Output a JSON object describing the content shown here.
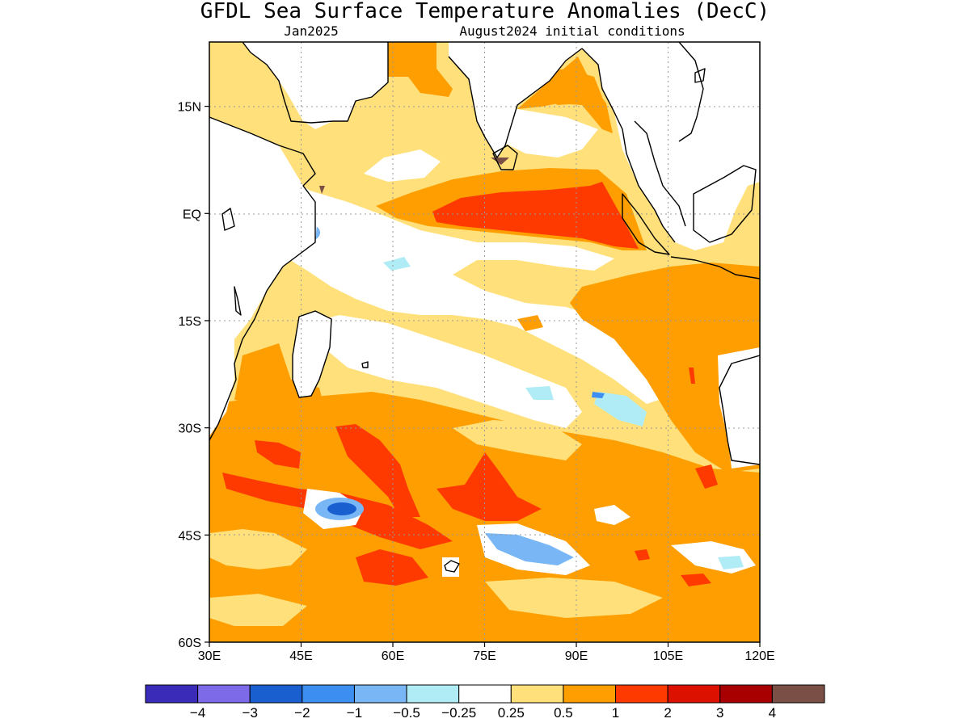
{
  "title": "GFDL Sea Surface Temperature Anomalies (DecC)",
  "subtitle_left": "Jan2025",
  "subtitle_right": "August2024 initial conditions",
  "axes": {
    "x_ticks": [
      "30E",
      "45E",
      "60E",
      "75E",
      "90E",
      "105E",
      "120E"
    ],
    "y_ticks": [
      "15N",
      "EQ",
      "15S",
      "30S",
      "45S",
      "60S"
    ]
  },
  "colorbar": {
    "colors": [
      "#3a2bb8",
      "#7c6ae8",
      "#1a5fd0",
      "#3c8ff0",
      "#78b6f5",
      "#b0ecf5",
      "#ffffff",
      "#ffe07a",
      "#ff9e00",
      "#ff3a00",
      "#dd1100",
      "#a80000",
      "#7a4f45"
    ],
    "labels": [
      "−4",
      "−3",
      "−2",
      "−1",
      "−0.5",
      "−0.25",
      "0.25",
      "0.5",
      "1",
      "2",
      "3",
      "4"
    ]
  },
  "chart_data": {
    "type": "heatmap",
    "title": "GFDL Sea Surface Temperature Anomalies (DecC)",
    "valid_month": "Jan2025",
    "initial_conditions": "August2024 initial conditions",
    "lon_range": [
      30,
      120
    ],
    "lat_range": [
      -60,
      24
    ],
    "x_ticks": [
      "30E",
      "45E",
      "60E",
      "75E",
      "90E",
      "105E",
      "120E"
    ],
    "y_ticks": [
      "15N",
      "EQ",
      "15S",
      "30S",
      "45S",
      "60S"
    ],
    "grid": true,
    "levels": [
      -4,
      -3,
      -2,
      -1,
      -0.5,
      -0.25,
      0.25,
      0.5,
      1,
      2,
      3,
      4
    ],
    "colors": [
      "#3a2bb8",
      "#7c6ae8",
      "#1a5fd0",
      "#3c8ff0",
      "#78b6f5",
      "#b0ecf5",
      "#ffffff",
      "#ffe07a",
      "#ff9e00",
      "#ff3a00",
      "#dd1100",
      "#a80000",
      "#7a4f45"
    ],
    "regions": [
      {
        "anomaly_range": [
          0.25,
          0.5
        ],
        "lon": [
          62,
          92
        ],
        "lat": [
          -18,
          -2
        ]
      },
      {
        "anomaly_range": [
          0.5,
          1
        ],
        "lon": [
          95,
          120
        ],
        "lat": [
          -28,
          -5
        ]
      },
      {
        "anomaly_range": [
          1,
          2
        ],
        "lon": [
          65,
          98
        ],
        "lat": [
          -5,
          5
        ]
      },
      {
        "anomaly_range": [
          0.5,
          1
        ],
        "lon": [
          30,
          120
        ],
        "lat": [
          -60,
          -30
        ]
      },
      {
        "anomaly_range": [
          1,
          2
        ],
        "lon": [
          40,
          80
        ],
        "lat": [
          -52,
          -32
        ]
      },
      {
        "anomaly_range": [
          -1,
          -0.5
        ],
        "lon": [
          48,
          54
        ],
        "lat": [
          -45,
          -41
        ]
      },
      {
        "anomaly_range": [
          -1,
          -0.5
        ],
        "lon": [
          73,
          86
        ],
        "lat": [
          -49,
          -45
        ]
      },
      {
        "anomaly_range": [
          -0.5,
          -0.25
        ],
        "lon": [
          88,
          97
        ],
        "lat": [
          -30,
          -25
        ]
      }
    ]
  }
}
